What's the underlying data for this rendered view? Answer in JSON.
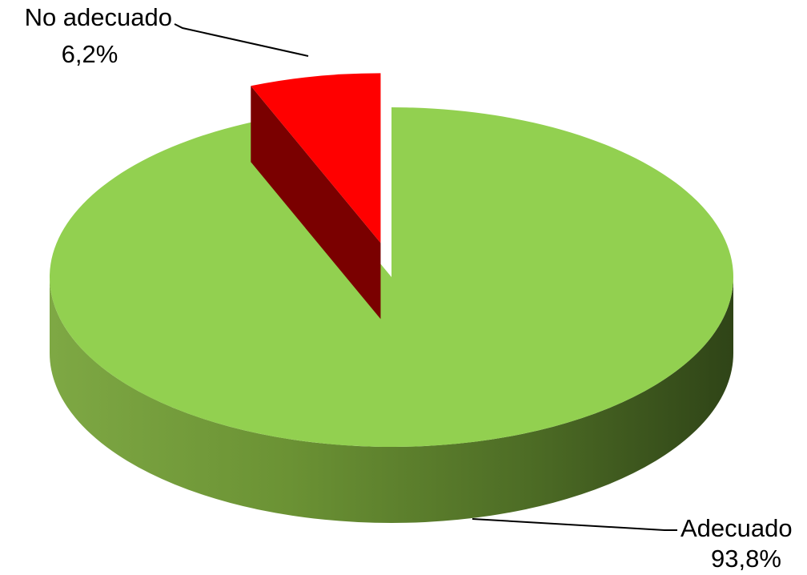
{
  "chart_data": {
    "type": "pie",
    "style": "3d-exploded",
    "slices": [
      {
        "label": "Adecuado",
        "value": 93.8,
        "value_label": "93,8%",
        "color": "#92d050",
        "exploded": false
      },
      {
        "label": "No adecuado",
        "value": 6.2,
        "value_label": "6,2%",
        "color": "#ff0000",
        "exploded": true
      }
    ],
    "title": "",
    "legend": "none"
  }
}
